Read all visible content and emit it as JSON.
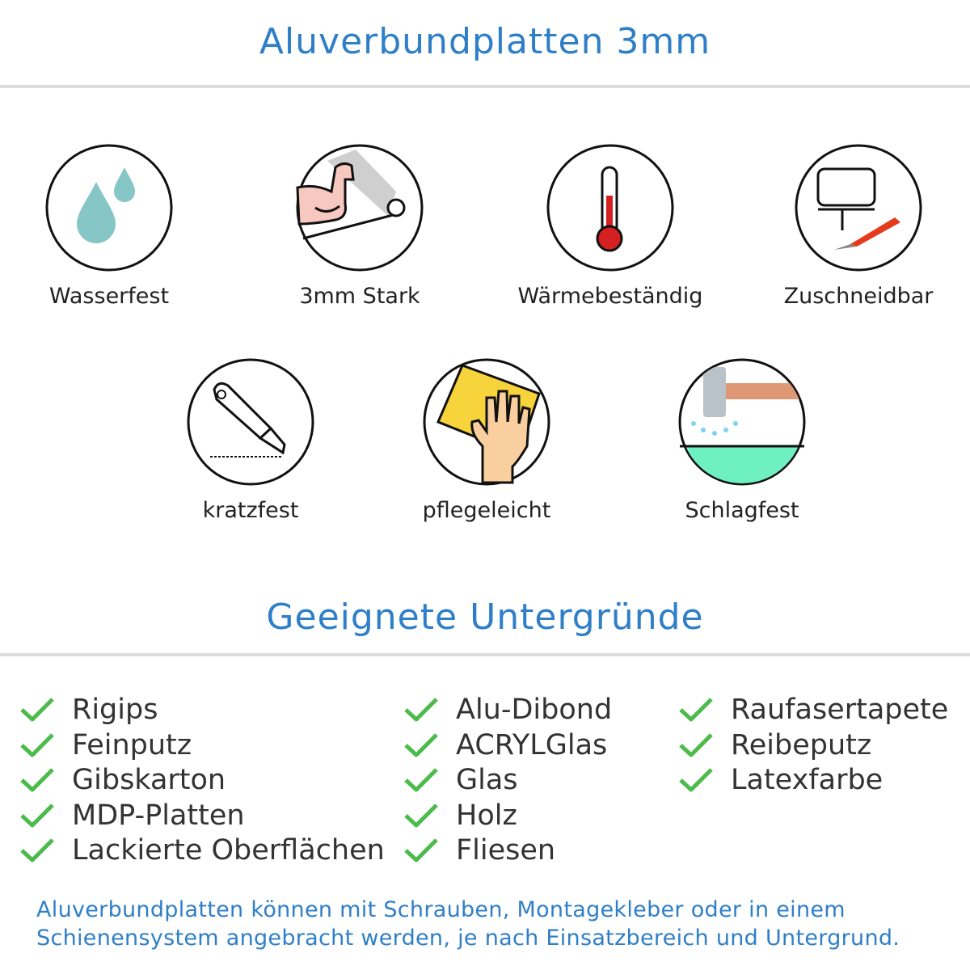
{
  "header": {
    "title": "Aluverbundplatten 3mm"
  },
  "features": [
    {
      "label": "Wasserfest",
      "icon": "water-drops-icon"
    },
    {
      "label": "3mm Stark",
      "icon": "strong-arm-icon"
    },
    {
      "label": "Wärmebeständig",
      "icon": "thermometer-icon"
    },
    {
      "label": "Zuschneidbar",
      "icon": "jigsaw-cutter-icon"
    },
    {
      "label": "kratzfest",
      "icon": "utility-knife-icon"
    },
    {
      "label": "pflegeleicht",
      "icon": "hand-sponge-icon"
    },
    {
      "label": "Schlagfest",
      "icon": "hammer-impact-icon"
    }
  ],
  "surfaces": {
    "title": "Geeignete Untergründe",
    "columns": [
      [
        "Rigips",
        "Feinputz",
        "Gibskarton",
        "MDP-Platten",
        "Lackierte Oberflächen"
      ],
      [
        "Alu-Dibond",
        "ACRYLGlas",
        "Glas",
        "Holz",
        "Fliesen"
      ],
      [
        "Raufasertapete",
        "Reibeputz",
        "Latexfarbe"
      ]
    ],
    "check_color": "#4cbb4c"
  },
  "footer": {
    "line1": "Aluverbundplatten können mit Schrauben, Montagekleber oder in einem",
    "line2": "Schienensystem angebracht werden, je nach Einsatzbereich und Untergrund."
  },
  "colors": {
    "accent": "#2f7fc8",
    "text": "#333333",
    "rule": "#dcdcdc"
  }
}
